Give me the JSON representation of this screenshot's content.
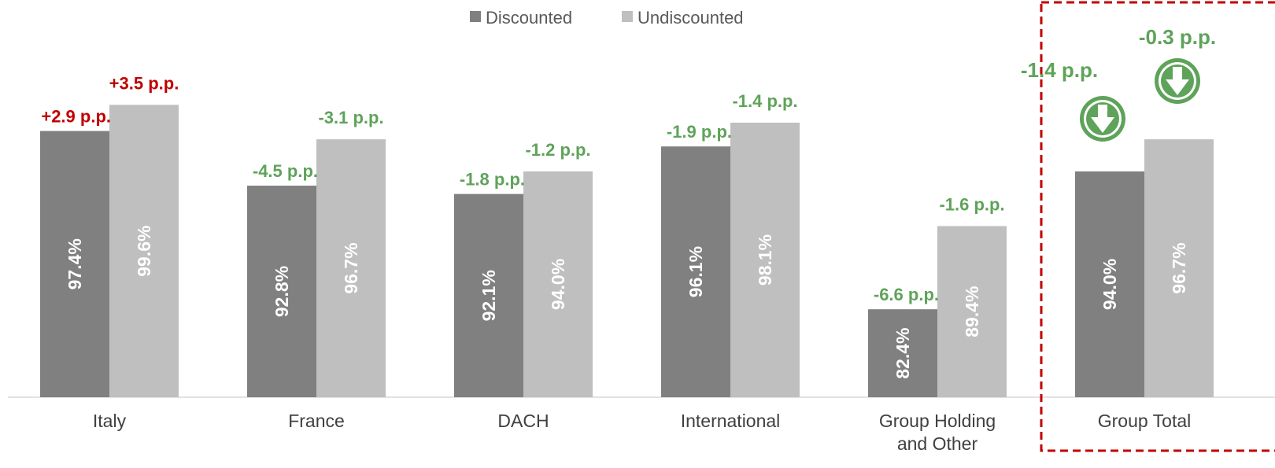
{
  "chart_data": {
    "type": "bar",
    "categories": [
      "Italy",
      "France",
      "DACH",
      "International",
      "Group Holding and Other",
      "Group Total"
    ],
    "category_lines": [
      [
        "Italy"
      ],
      [
        "France"
      ],
      [
        "DACH"
      ],
      [
        "International"
      ],
      [
        "Group Holding",
        "and Other"
      ],
      [
        "Group Total"
      ]
    ],
    "series": [
      {
        "name": "Discounted",
        "color": "#808080",
        "values": [
          97.4,
          92.8,
          92.1,
          96.1,
          82.4,
          94.0
        ],
        "labels": [
          "97.4%",
          "92.8%",
          "92.1%",
          "96.1%",
          "82.4%",
          "94.0%"
        ],
        "changes": [
          "+2.9 p.p.",
          "-4.5 p.p.",
          "-1.8 p.p.",
          "-1.9 p.p.",
          "-6.6 p.p.",
          "-1.4 p.p."
        ]
      },
      {
        "name": "Undiscounted",
        "color": "#bfbfbf",
        "values": [
          99.6,
          96.7,
          94.0,
          98.1,
          89.4,
          96.7
        ],
        "labels": [
          "99.6%",
          "96.7%",
          "94.0%",
          "98.1%",
          "89.4%",
          "96.7%"
        ],
        "changes": [
          "+3.5 p.p.",
          "-3.1 p.p.",
          "-1.2 p.p.",
          "-1.4 p.p.",
          "-1.6 p.p.",
          "-0.3 p.p."
        ]
      }
    ],
    "change_colors": {
      "increase": "#c00000",
      "decrease": "#5ea359"
    },
    "highlight_category": "Group Total",
    "highlight_color": "#c00000",
    "legend_position": "top-center",
    "axis_baseline": 75,
    "grid": false,
    "title": "",
    "xlabel": "",
    "ylabel": ""
  },
  "icons": [
    "arrow-down-circle-icon",
    "arrow-down-circle-icon"
  ]
}
